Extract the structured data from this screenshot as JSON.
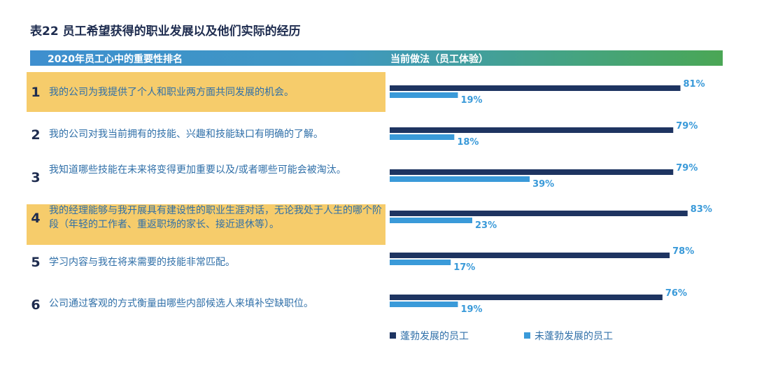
{
  "title": "表22 员工希望获得的职业发展以及他们实际的经历",
  "header": {
    "left": "2020年员工心中的重要性排名",
    "right": "当前做法（员工体验）"
  },
  "rows": [
    {
      "rank": "1",
      "text": "我的公司为我提供了个人和职业两方面共同发展的机会。",
      "highlighted": true
    },
    {
      "rank": "2",
      "text": "我的公司对我当前拥有的技能、兴趣和技能缺口有明确的了解。",
      "highlighted": false
    },
    {
      "rank": "3",
      "text": "我知道哪些技能在未来将变得更加重要以及/或者哪些可能会被淘汰。",
      "highlighted": false
    },
    {
      "rank": "4",
      "text": "我的经理能够与我开展具有建设性的职业生涯对话，无论我处于人生的哪个阶段（年轻的工作者、重返职场的家长、接近退休等）。",
      "highlighted": true
    },
    {
      "rank": "5",
      "text": "学习内容与我在将来需要的技能非常匹配。",
      "highlighted": false
    },
    {
      "rank": "6",
      "text": "公司通过客观的方式衡量由哪些内部候选人来填补空缺职位。",
      "highlighted": false
    }
  ],
  "colors": {
    "thriving": "#1e3461",
    "not_thriving": "#3a9ad9",
    "highlight": "#f6cc6b"
  },
  "legend": [
    {
      "label": "蓬勃发展的员工",
      "color": "#1e3461"
    },
    {
      "label": "未蓬勃发展的员工",
      "color": "#3a9ad9"
    }
  ],
  "chart_data": {
    "type": "bar",
    "orientation": "horizontal",
    "categories": [
      "1",
      "2",
      "3",
      "4",
      "5",
      "6"
    ],
    "series": [
      {
        "name": "蓬勃发展的员工",
        "values": [
          81,
          79,
          79,
          83,
          78,
          76
        ]
      },
      {
        "name": "未蓬勃发展的员工",
        "values": [
          19,
          18,
          39,
          23,
          17,
          19
        ]
      }
    ],
    "value_suffix": "%",
    "xlim": [
      0,
      100
    ],
    "legend_position": "bottom"
  }
}
